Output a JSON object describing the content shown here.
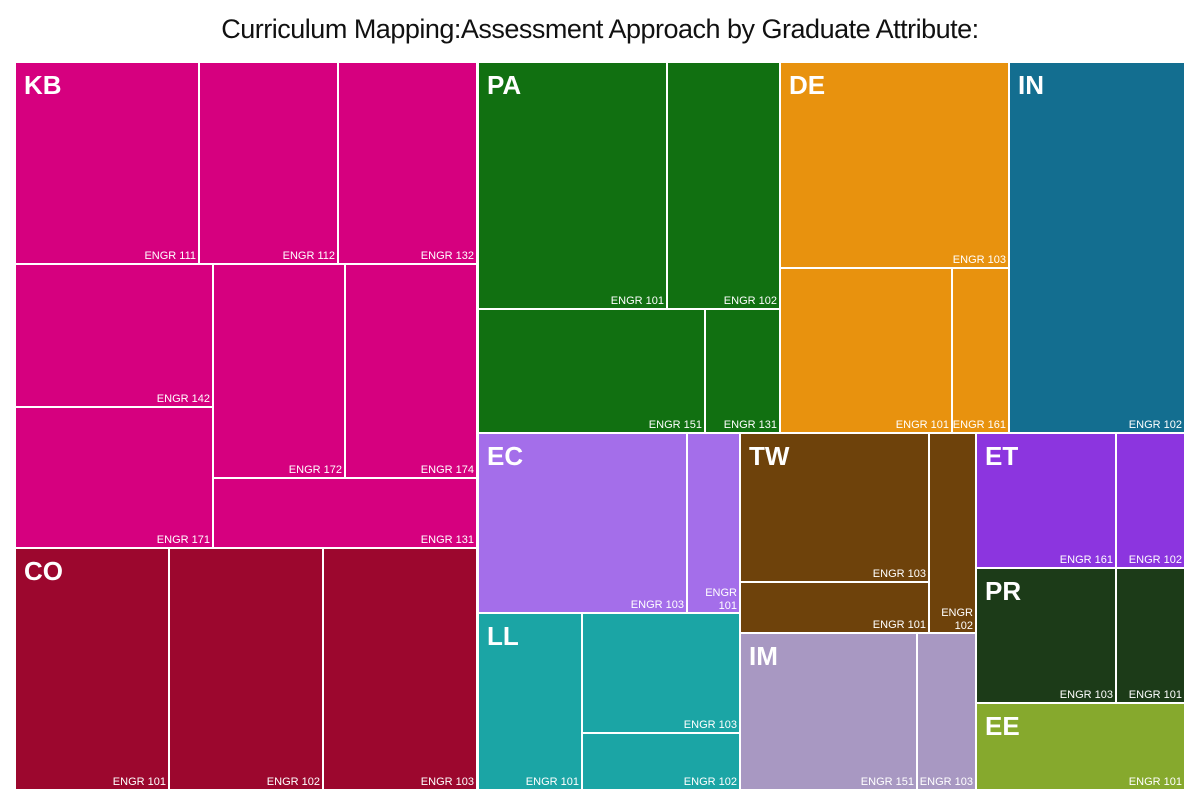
{
  "title": "Curriculum Mapping:Assessment Approach by Graduate Attribute:",
  "chart_data": {
    "type": "treemap",
    "title": "Curriculum Mapping:Assessment Approach by Graduate Attribute:",
    "groups": [
      {
        "code": "KB",
        "color": "#d6007f",
        "children": [
          {
            "label": "ENGR 111",
            "value": 8.1
          },
          {
            "label": "ENGR 112",
            "value": 7.0
          },
          {
            "label": "ENGR 132",
            "value": 7.0
          },
          {
            "label": "ENGR 142",
            "value": 5.7
          },
          {
            "label": "ENGR 171",
            "value": 5.7
          },
          {
            "label": "ENGR 172",
            "value": 4.6
          },
          {
            "label": "ENGR 174",
            "value": 4.6
          },
          {
            "label": "ENGR 131",
            "value": 4.5
          }
        ]
      },
      {
        "code": "CO",
        "color": "#9c072e",
        "children": [
          {
            "label": "ENGR 101",
            "value": 6.4
          },
          {
            "label": "ENGR 102",
            "value": 6.4
          },
          {
            "label": "ENGR 103",
            "value": 6.4
          }
        ]
      },
      {
        "code": "PA",
        "color": "#117011",
        "children": [
          {
            "label": "ENGR 101",
            "value": 6.4
          },
          {
            "label": "ENGR 102",
            "value": 3.8
          },
          {
            "label": "ENGR 151",
            "value": 3.0
          },
          {
            "label": "ENGR 131",
            "value": 1.0
          }
        ]
      },
      {
        "code": "DE",
        "color": "#e8920e",
        "children": [
          {
            "label": "ENGR 103",
            "value": 5.0
          },
          {
            "label": "ENGR 101",
            "value": 3.5
          },
          {
            "label": "ENGR 161",
            "value": 1.0
          }
        ]
      },
      {
        "code": "IN",
        "color": "#136e90",
        "children": [
          {
            "label": "ENGR 102",
            "value": 9.0
          }
        ]
      },
      {
        "code": "EC",
        "color": "#a46eea",
        "children": [
          {
            "label": "ENGR 103",
            "value": 4.3
          },
          {
            "label": "ENGR 101",
            "value": 1.0
          }
        ]
      },
      {
        "code": "LL",
        "color": "#1ba5a5",
        "children": [
          {
            "label": "ENGR 101",
            "value": 2.0
          },
          {
            "label": "ENGR 103",
            "value": 2.0
          },
          {
            "label": "ENGR 102",
            "value": 1.0
          }
        ]
      },
      {
        "code": "TW",
        "color": "#6e420b",
        "children": [
          {
            "label": "ENGR 103",
            "value": 4.0
          },
          {
            "label": "ENGR 101",
            "value": 1.0
          },
          {
            "label": "ENGR 102",
            "value": 1.0
          }
        ]
      },
      {
        "code": "IM",
        "color": "#a898c2",
        "children": [
          {
            "label": "ENGR 151",
            "value": 3.0
          },
          {
            "label": "ENGR 103",
            "value": 1.0
          }
        ]
      },
      {
        "code": "ET",
        "color": "#8c35df",
        "children": [
          {
            "label": "ENGR 161",
            "value": 1.6
          },
          {
            "label": "ENGR 102",
            "value": 0.8
          }
        ]
      },
      {
        "code": "PR",
        "color": "#1c3b18",
        "children": [
          {
            "label": "ENGR 103",
            "value": 1.6
          },
          {
            "label": "ENGR 101",
            "value": 0.8
          }
        ]
      },
      {
        "code": "EE",
        "color": "#86a92d",
        "children": [
          {
            "label": "ENGR 101",
            "value": 1.8
          }
        ]
      }
    ]
  }
}
